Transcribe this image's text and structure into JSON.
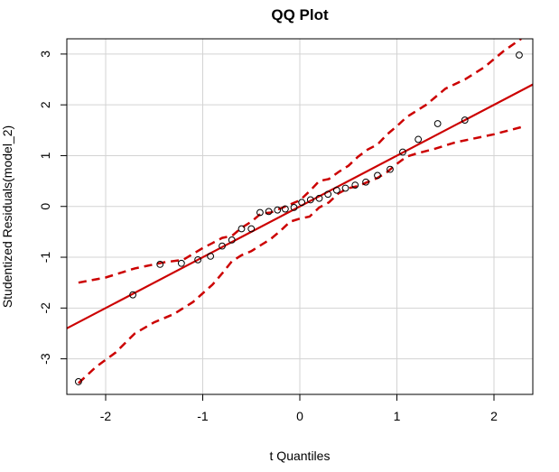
{
  "chart_data": {
    "type": "scatter",
    "title": "QQ Plot",
    "xlabel": "t Quantiles",
    "ylabel": "Studentized Residuals(model_2)",
    "xlim": [
      -2.4,
      2.4
    ],
    "ylim": [
      -3.7,
      3.3
    ],
    "x_ticks": [
      -2,
      -1,
      0,
      1,
      2
    ],
    "x_tick_labels": [
      "-2",
      "-1",
      "0",
      "1",
      "2"
    ],
    "y_ticks": [
      -3,
      -2,
      -1,
      0,
      1,
      2,
      3
    ],
    "y_tick_labels": [
      "-3",
      "-2",
      "-1",
      "0",
      "1",
      "2",
      "3"
    ],
    "grid": true,
    "points": [
      {
        "x": -2.28,
        "y": -3.45
      },
      {
        "x": -1.72,
        "y": -1.74
      },
      {
        "x": -1.44,
        "y": -1.14
      },
      {
        "x": -1.22,
        "y": -1.12
      },
      {
        "x": -1.05,
        "y": -1.05
      },
      {
        "x": -0.92,
        "y": -0.98
      },
      {
        "x": -0.8,
        "y": -0.78
      },
      {
        "x": -0.7,
        "y": -0.66
      },
      {
        "x": -0.6,
        "y": -0.44
      },
      {
        "x": -0.5,
        "y": -0.44
      },
      {
        "x": -0.41,
        "y": -0.12
      },
      {
        "x": -0.32,
        "y": -0.1
      },
      {
        "x": -0.23,
        "y": -0.07
      },
      {
        "x": -0.15,
        "y": -0.05
      },
      {
        "x": -0.06,
        "y": -0.02
      },
      {
        "x": 0.02,
        "y": 0.08
      },
      {
        "x": 0.11,
        "y": 0.13
      },
      {
        "x": 0.2,
        "y": 0.16
      },
      {
        "x": 0.29,
        "y": 0.24
      },
      {
        "x": 0.38,
        "y": 0.32
      },
      {
        "x": 0.47,
        "y": 0.36
      },
      {
        "x": 0.57,
        "y": 0.42
      },
      {
        "x": 0.68,
        "y": 0.48
      },
      {
        "x": 0.8,
        "y": 0.61
      },
      {
        "x": 0.93,
        "y": 0.73
      },
      {
        "x": 1.06,
        "y": 1.07
      },
      {
        "x": 1.22,
        "y": 1.32
      },
      {
        "x": 1.42,
        "y": 1.63
      },
      {
        "x": 1.7,
        "y": 1.7
      },
      {
        "x": 2.26,
        "y": 2.98
      }
    ],
    "reference_line": {
      "intercept": 0.0,
      "slope": 1.0,
      "color": "#cc0000"
    },
    "envelope_upper": [
      {
        "x": -2.28,
        "y": -1.5
      },
      {
        "x": -2.0,
        "y": -1.4
      },
      {
        "x": -1.7,
        "y": -1.22
      },
      {
        "x": -1.4,
        "y": -1.1
      },
      {
        "x": -1.2,
        "y": -1.05
      },
      {
        "x": -1.0,
        "y": -0.82
      },
      {
        "x": -0.9,
        "y": -0.72
      },
      {
        "x": -0.8,
        "y": -0.62
      },
      {
        "x": -0.7,
        "y": -0.58
      },
      {
        "x": -0.6,
        "y": -0.42
      },
      {
        "x": -0.5,
        "y": -0.3
      },
      {
        "x": -0.4,
        "y": -0.14
      },
      {
        "x": -0.3,
        "y": -0.12
      },
      {
        "x": -0.2,
        "y": -0.04
      },
      {
        "x": -0.1,
        "y": 0.04
      },
      {
        "x": 0.0,
        "y": 0.12
      },
      {
        "x": 0.1,
        "y": 0.3
      },
      {
        "x": 0.2,
        "y": 0.5
      },
      {
        "x": 0.3,
        "y": 0.54
      },
      {
        "x": 0.4,
        "y": 0.68
      },
      {
        "x": 0.5,
        "y": 0.8
      },
      {
        "x": 0.6,
        "y": 0.98
      },
      {
        "x": 0.7,
        "y": 1.12
      },
      {
        "x": 0.8,
        "y": 1.22
      },
      {
        "x": 0.9,
        "y": 1.42
      },
      {
        "x": 1.0,
        "y": 1.58
      },
      {
        "x": 1.1,
        "y": 1.76
      },
      {
        "x": 1.3,
        "y": 2.0
      },
      {
        "x": 1.5,
        "y": 2.32
      },
      {
        "x": 1.7,
        "y": 2.5
      },
      {
        "x": 1.9,
        "y": 2.74
      },
      {
        "x": 2.1,
        "y": 3.06
      },
      {
        "x": 2.28,
        "y": 3.3
      }
    ],
    "envelope_lower": [
      {
        "x": -2.28,
        "y": -3.48
      },
      {
        "x": -2.1,
        "y": -3.16
      },
      {
        "x": -1.9,
        "y": -2.88
      },
      {
        "x": -1.7,
        "y": -2.5
      },
      {
        "x": -1.5,
        "y": -2.28
      },
      {
        "x": -1.3,
        "y": -2.12
      },
      {
        "x": -1.1,
        "y": -1.88
      },
      {
        "x": -0.9,
        "y": -1.54
      },
      {
        "x": -0.8,
        "y": -1.32
      },
      {
        "x": -0.7,
        "y": -1.08
      },
      {
        "x": -0.6,
        "y": -0.96
      },
      {
        "x": -0.5,
        "y": -0.88
      },
      {
        "x": -0.4,
        "y": -0.76
      },
      {
        "x": -0.3,
        "y": -0.64
      },
      {
        "x": -0.2,
        "y": -0.48
      },
      {
        "x": -0.1,
        "y": -0.3
      },
      {
        "x": 0.0,
        "y": -0.24
      },
      {
        "x": 0.1,
        "y": -0.2
      },
      {
        "x": 0.2,
        "y": -0.02
      },
      {
        "x": 0.3,
        "y": 0.08
      },
      {
        "x": 0.4,
        "y": 0.26
      },
      {
        "x": 0.5,
        "y": 0.36
      },
      {
        "x": 0.6,
        "y": 0.4
      },
      {
        "x": 0.7,
        "y": 0.48
      },
      {
        "x": 0.8,
        "y": 0.56
      },
      {
        "x": 0.9,
        "y": 0.68
      },
      {
        "x": 1.0,
        "y": 0.84
      },
      {
        "x": 1.1,
        "y": 0.98
      },
      {
        "x": 1.2,
        "y": 1.04
      },
      {
        "x": 1.4,
        "y": 1.14
      },
      {
        "x": 1.6,
        "y": 1.26
      },
      {
        "x": 1.8,
        "y": 1.34
      },
      {
        "x": 2.0,
        "y": 1.42
      },
      {
        "x": 2.28,
        "y": 1.56
      }
    ],
    "colors": {
      "points": "#000000",
      "reference_line": "#cc0000",
      "envelope": "#cc0000",
      "grid": "#d3d3d3",
      "axis": "#000000"
    }
  }
}
